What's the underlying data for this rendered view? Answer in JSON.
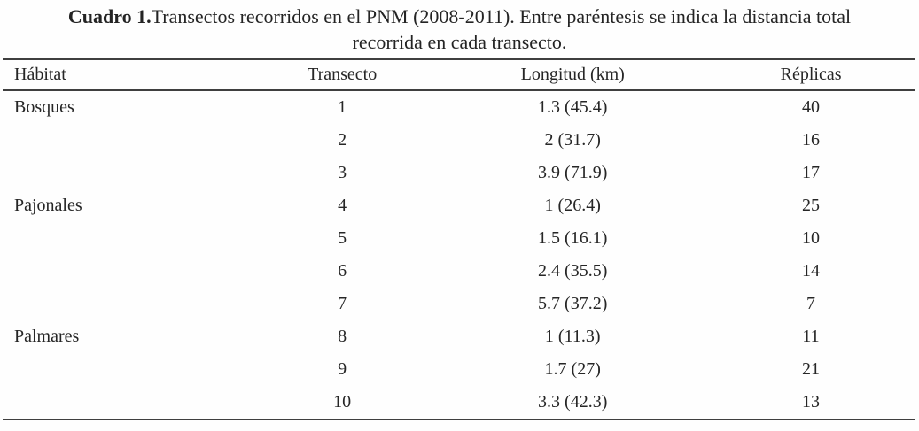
{
  "caption": {
    "bold": "Cuadro 1.",
    "line1_rest": "Transectos recorridos en el PNM (2008-2011). Entre paréntesis se indica la distancia total",
    "line2": "recorrida en cada transecto."
  },
  "table": {
    "columns": [
      "Hábitat",
      "Transecto",
      "Longitud (km)",
      "Réplicas"
    ],
    "rows": [
      [
        "Bosques",
        "1",
        "1.3 (45.4)",
        "40"
      ],
      [
        "",
        "2",
        "2 (31.7)",
        "16"
      ],
      [
        "",
        "3",
        "3.9 (71.9)",
        "17"
      ],
      [
        "Pajonales",
        "4",
        "1 (26.4)",
        "25"
      ],
      [
        "",
        "5",
        "1.5 (16.1)",
        "10"
      ],
      [
        "",
        "6",
        "2.4 (35.5)",
        "14"
      ],
      [
        "",
        "7",
        "5.7 (37.2)",
        "7"
      ],
      [
        "Palmares",
        "8",
        "1 (11.3)",
        "11"
      ],
      [
        "",
        "9",
        "1.7 (27)",
        "21"
      ],
      [
        "",
        "10",
        "3.3 (42.3)",
        "13"
      ]
    ]
  }
}
